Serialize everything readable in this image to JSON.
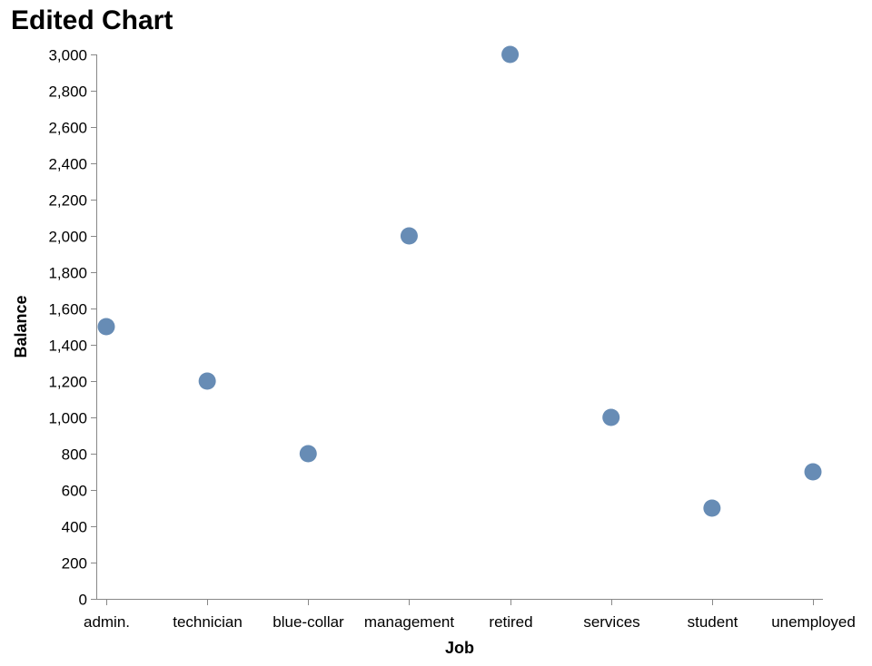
{
  "chart_data": {
    "type": "scatter",
    "title": "Edited Chart",
    "xlabel": "Job",
    "ylabel": "Balance",
    "categories": [
      "admin.",
      "technician",
      "blue-collar",
      "management",
      "retired",
      "services",
      "student",
      "unemployed"
    ],
    "values": [
      1500,
      1200,
      800,
      2000,
      3000,
      1000,
      500,
      700
    ],
    "ylim": [
      0,
      3000
    ],
    "yticks": [
      0,
      200,
      400,
      600,
      800,
      1000,
      1200,
      1400,
      1600,
      1800,
      2000,
      2200,
      2400,
      2600,
      2800,
      3000
    ],
    "ytick_labels": [
      "0",
      "200",
      "400",
      "600",
      "800",
      "1,000",
      "1,200",
      "1,400",
      "1,600",
      "1,800",
      "2,000",
      "2,200",
      "2,400",
      "2,600",
      "2,800",
      "3,000"
    ],
    "grid": false,
    "legend": "none",
    "point_color": "#4c78a8"
  }
}
